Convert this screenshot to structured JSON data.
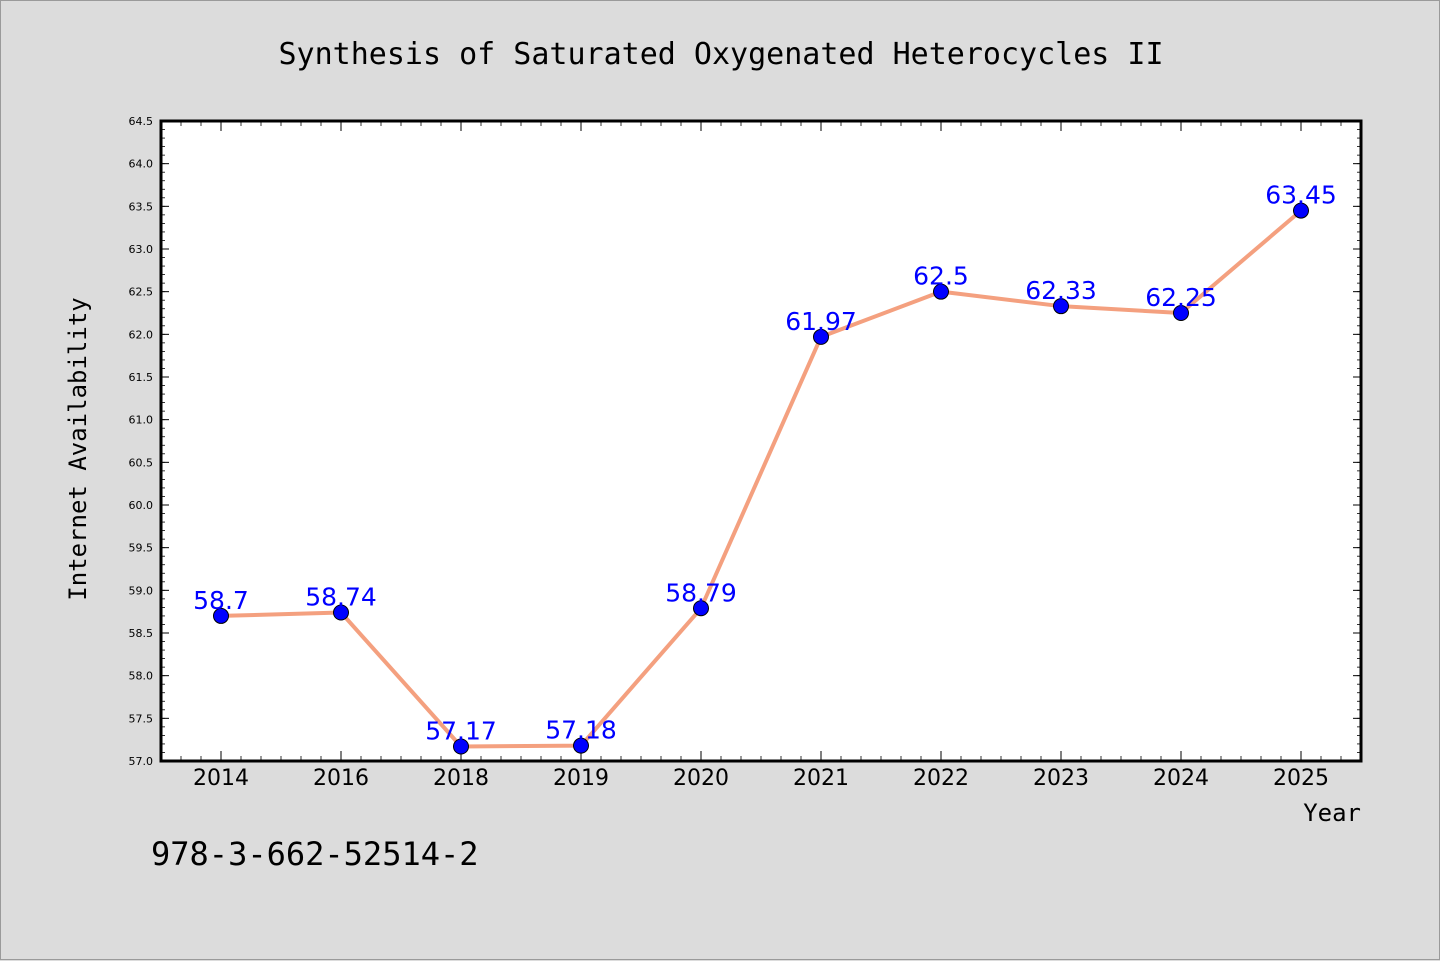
{
  "chart_data": {
    "type": "line",
    "title": "Synthesis of Saturated Oxygenated Heterocycles II",
    "xlabel": "Year",
    "ylabel": "Internet Availability",
    "categories": [
      "2014",
      "2016",
      "2018",
      "2019",
      "2020",
      "2021",
      "2022",
      "2023",
      "2024",
      "2025"
    ],
    "series": [
      {
        "values": [
          58.7,
          58.74,
          57.17,
          57.18,
          58.79,
          61.97,
          62.5,
          62.33,
          62.25,
          63.45
        ],
        "labels": [
          "58.7",
          "58.74",
          "57.17",
          "57.18",
          "58.79",
          "61.97",
          "62.5",
          "62.33",
          "62.25",
          "63.45"
        ],
        "line_color": "#f4a07f",
        "marker_color": "#0000ff"
      }
    ],
    "ylim": [
      57.0,
      64.5
    ],
    "yticks": [
      "57.0",
      "57.5",
      "58.0",
      "58.5",
      "59.0",
      "59.5",
      "60.0",
      "60.5",
      "61.0",
      "61.5",
      "62.0",
      "62.5",
      "63.0",
      "63.5",
      "64.0",
      "64.5"
    ],
    "grid": false,
    "legend": "none"
  },
  "footnote": "978-3-662-52514-2",
  "colors": {
    "background": "#dcdcdc",
    "plot_background": "#ffffff",
    "label_color": "#0000ff"
  }
}
